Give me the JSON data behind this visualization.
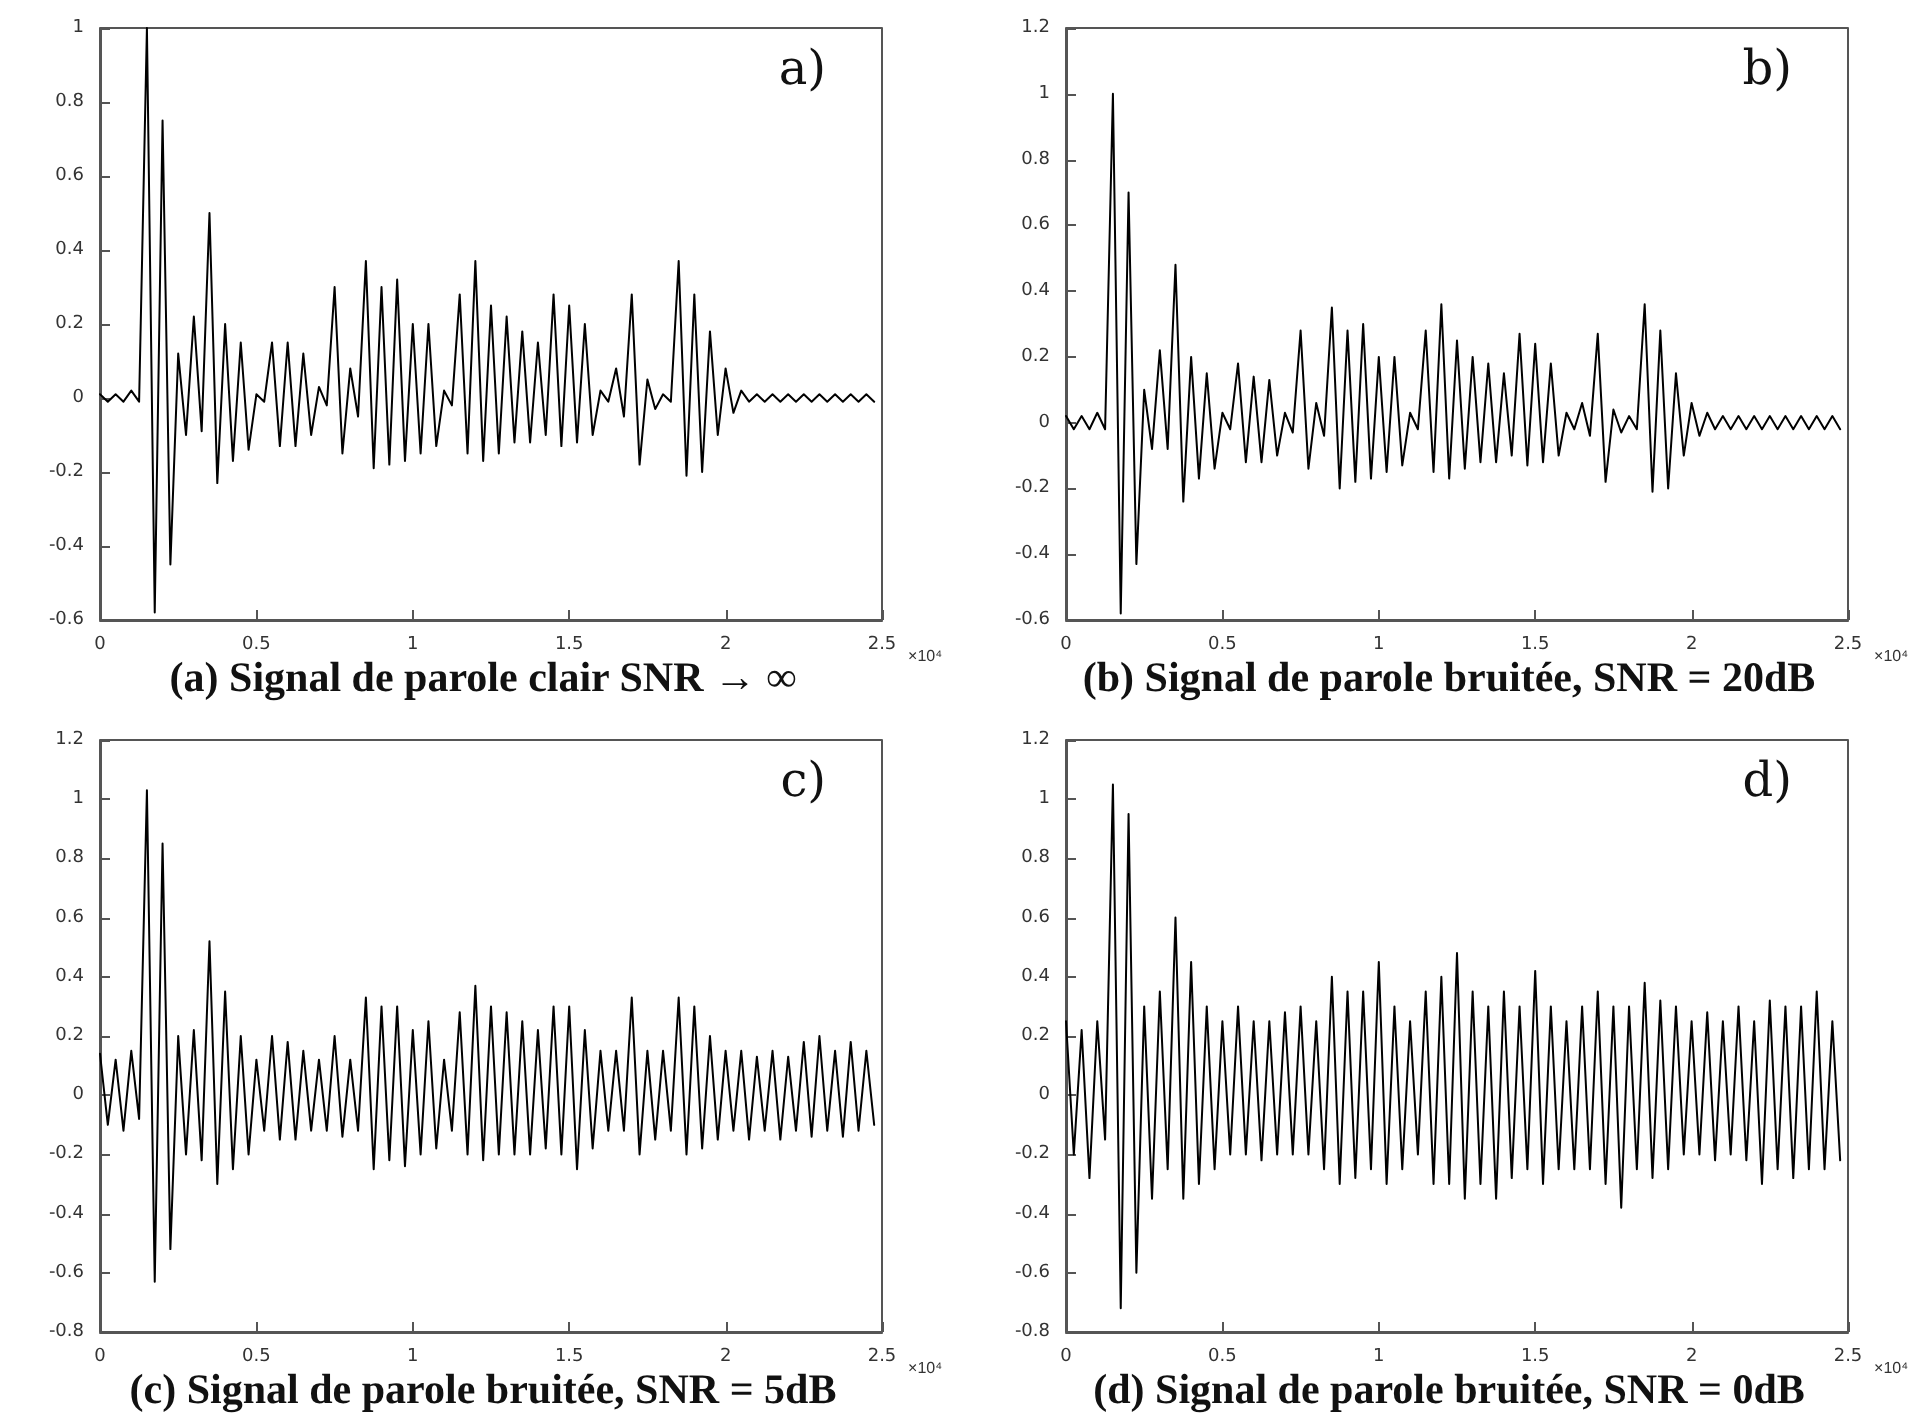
{
  "chart_data": [
    {
      "type": "line",
      "title": "(a) Signal de parole clair SNR → ∞",
      "xlabel": "×10⁴",
      "annotations": [
        "a)"
      ],
      "x": [
        0,
        0.025,
        0.05,
        0.075,
        0.1,
        0.125,
        0.15,
        0.175,
        0.2,
        0.225,
        0.25,
        0.275,
        0.3,
        0.325,
        0.35,
        0.375,
        0.4,
        0.425,
        0.45,
        0.475,
        0.5,
        0.525,
        0.55,
        0.575,
        0.6,
        0.625,
        0.65,
        0.675,
        0.7,
        0.725,
        0.75,
        0.775,
        0.8,
        0.825,
        0.85,
        0.875,
        0.9,
        0.925,
        0.95,
        0.975,
        1,
        1.025,
        1.05,
        1.075,
        1.1,
        1.125,
        1.15,
        1.175,
        1.2,
        1.225,
        1.25,
        1.275,
        1.3,
        1.325,
        1.35,
        1.375,
        1.4,
        1.425,
        1.45,
        1.475,
        1.5,
        1.525,
        1.55,
        1.575,
        1.6,
        1.625,
        1.65,
        1.675,
        1.7,
        1.725,
        1.75,
        1.775,
        1.8,
        1.825,
        1.85,
        1.875,
        1.9,
        1.925,
        1.95,
        1.975,
        2,
        2.025,
        2.05,
        2.075,
        2.1,
        2.125,
        2.15,
        2.175,
        2.2,
        2.225,
        2.25,
        2.275,
        2.3,
        2.325,
        2.35,
        2.375,
        2.4,
        2.425,
        2.45,
        2.475
      ],
      "series": [
        {
          "color": "#000000",
          "values": [
            0.01,
            -0.01,
            0.01,
            -0.01,
            0.02,
            -0.01,
            1,
            -0.58,
            0.75,
            -0.45,
            0.12,
            -0.1,
            0.22,
            -0.09,
            0.5,
            -0.23,
            0.2,
            -0.17,
            0.15,
            -0.14,
            0.01,
            -0.01,
            0.15,
            -0.13,
            0.15,
            -0.13,
            0.12,
            -0.1,
            0.03,
            -0.02,
            0.3,
            -0.15,
            0.08,
            -0.05,
            0.37,
            -0.19,
            0.3,
            -0.18,
            0.32,
            -0.17,
            0.2,
            -0.15,
            0.2,
            -0.13,
            0.02,
            -0.02,
            0.28,
            -0.15,
            0.37,
            -0.17,
            0.25,
            -0.15,
            0.22,
            -0.12,
            0.18,
            -0.12,
            0.15,
            -0.1,
            0.28,
            -0.13,
            0.25,
            -0.12,
            0.2,
            -0.1,
            0.02,
            -0.01,
            0.08,
            -0.05,
            0.28,
            -0.18,
            0.05,
            -0.03,
            0.01,
            -0.01,
            0.37,
            -0.21,
            0.28,
            -0.2,
            0.18,
            -0.1,
            0.08,
            -0.04,
            0.02,
            -0.01,
            0.01,
            -0.01,
            0.01,
            -0.01,
            0.01,
            -0.01,
            0.01,
            -0.01,
            0.01,
            -0.01,
            0.01,
            -0.01,
            0.01,
            -0.01,
            0.01,
            -0.01
          ]
        }
      ],
      "xlim": [
        0,
        2.5
      ],
      "xticks": [
        0,
        0.5,
        1,
        1.5,
        2,
        2.5
      ],
      "ylim": [
        -0.6,
        1
      ],
      "yticks": [
        -0.6,
        -0.4,
        -0.2,
        0,
        0.2,
        0.4,
        0.6,
        0.8,
        1
      ]
    },
    {
      "type": "line",
      "title": "(b) Signal de parole bruitée, SNR = 20dB",
      "xlabel": "×10⁴",
      "annotations": [
        "b)"
      ],
      "x": [
        0,
        0.025,
        0.05,
        0.075,
        0.1,
        0.125,
        0.15,
        0.175,
        0.2,
        0.225,
        0.25,
        0.275,
        0.3,
        0.325,
        0.35,
        0.375,
        0.4,
        0.425,
        0.45,
        0.475,
        0.5,
        0.525,
        0.55,
        0.575,
        0.6,
        0.625,
        0.65,
        0.675,
        0.7,
        0.725,
        0.75,
        0.775,
        0.8,
        0.825,
        0.85,
        0.875,
        0.9,
        0.925,
        0.95,
        0.975,
        1,
        1.025,
        1.05,
        1.075,
        1.1,
        1.125,
        1.15,
        1.175,
        1.2,
        1.225,
        1.25,
        1.275,
        1.3,
        1.325,
        1.35,
        1.375,
        1.4,
        1.425,
        1.45,
        1.475,
        1.5,
        1.525,
        1.55,
        1.575,
        1.6,
        1.625,
        1.65,
        1.675,
        1.7,
        1.725,
        1.75,
        1.775,
        1.8,
        1.825,
        1.85,
        1.875,
        1.9,
        1.925,
        1.95,
        1.975,
        2,
        2.025,
        2.05,
        2.075,
        2.1,
        2.125,
        2.15,
        2.175,
        2.2,
        2.225,
        2.25,
        2.275,
        2.3,
        2.325,
        2.35,
        2.375,
        2.4,
        2.425,
        2.45,
        2.475
      ],
      "series": [
        {
          "color": "#000000",
          "values": [
            0.02,
            -0.02,
            0.02,
            -0.02,
            0.03,
            -0.02,
            1.0,
            -0.58,
            0.7,
            -0.43,
            0.1,
            -0.08,
            0.22,
            -0.08,
            0.48,
            -0.24,
            0.2,
            -0.17,
            0.15,
            -0.14,
            0.03,
            -0.02,
            0.18,
            -0.12,
            0.14,
            -0.12,
            0.13,
            -0.1,
            0.03,
            -0.03,
            0.28,
            -0.14,
            0.06,
            -0.04,
            0.35,
            -0.2,
            0.28,
            -0.18,
            0.3,
            -0.17,
            0.2,
            -0.15,
            0.2,
            -0.13,
            0.03,
            -0.02,
            0.28,
            -0.15,
            0.36,
            -0.17,
            0.25,
            -0.14,
            0.2,
            -0.12,
            0.18,
            -0.12,
            0.15,
            -0.1,
            0.27,
            -0.13,
            0.24,
            -0.12,
            0.18,
            -0.1,
            0.03,
            -0.02,
            0.06,
            -0.04,
            0.27,
            -0.18,
            0.04,
            -0.03,
            0.02,
            -0.02,
            0.36,
            -0.21,
            0.28,
            -0.2,
            0.15,
            -0.1,
            0.06,
            -0.04,
            0.03,
            -0.02,
            0.02,
            -0.02,
            0.02,
            -0.02,
            0.02,
            -0.02,
            0.02,
            -0.02,
            0.02,
            -0.02,
            0.02,
            -0.02,
            0.02,
            -0.02,
            0.02,
            -0.02
          ]
        }
      ],
      "xlim": [
        0,
        2.5
      ],
      "xticks": [
        0,
        0.5,
        1,
        1.5,
        2,
        2.5
      ],
      "ylim": [
        -0.6,
        1.2
      ],
      "yticks": [
        -0.6,
        -0.4,
        -0.2,
        0,
        0.2,
        0.4,
        0.6,
        0.8,
        1,
        1.2
      ]
    },
    {
      "type": "line",
      "title": "(c) Signal de parole bruitée, SNR = 5dB",
      "xlabel": "×10⁴",
      "annotations": [
        "c)"
      ],
      "x": [
        0,
        0.025,
        0.05,
        0.075,
        0.1,
        0.125,
        0.15,
        0.175,
        0.2,
        0.225,
        0.25,
        0.275,
        0.3,
        0.325,
        0.35,
        0.375,
        0.4,
        0.425,
        0.45,
        0.475,
        0.5,
        0.525,
        0.55,
        0.575,
        0.6,
        0.625,
        0.65,
        0.675,
        0.7,
        0.725,
        0.75,
        0.775,
        0.8,
        0.825,
        0.85,
        0.875,
        0.9,
        0.925,
        0.95,
        0.975,
        1,
        1.025,
        1.05,
        1.075,
        1.1,
        1.125,
        1.15,
        1.175,
        1.2,
        1.225,
        1.25,
        1.275,
        1.3,
        1.325,
        1.35,
        1.375,
        1.4,
        1.425,
        1.45,
        1.475,
        1.5,
        1.525,
        1.55,
        1.575,
        1.6,
        1.625,
        1.65,
        1.675,
        1.7,
        1.725,
        1.75,
        1.775,
        1.8,
        1.825,
        1.85,
        1.875,
        1.9,
        1.925,
        1.95,
        1.975,
        2,
        2.025,
        2.05,
        2.075,
        2.1,
        2.125,
        2.15,
        2.175,
        2.2,
        2.225,
        2.25,
        2.275,
        2.3,
        2.325,
        2.35,
        2.375,
        2.4,
        2.425,
        2.45,
        2.475
      ],
      "series": [
        {
          "color": "#000000",
          "values": [
            0.14,
            -0.1,
            0.12,
            -0.12,
            0.15,
            -0.08,
            1.03,
            -0.63,
            0.85,
            -0.52,
            0.2,
            -0.2,
            0.22,
            -0.22,
            0.52,
            -0.3,
            0.35,
            -0.25,
            0.2,
            -0.2,
            0.12,
            -0.12,
            0.2,
            -0.15,
            0.18,
            -0.15,
            0.15,
            -0.12,
            0.12,
            -0.12,
            0.2,
            -0.14,
            0.12,
            -0.12,
            0.33,
            -0.25,
            0.3,
            -0.22,
            0.3,
            -0.24,
            0.22,
            -0.2,
            0.25,
            -0.18,
            0.12,
            -0.12,
            0.28,
            -0.2,
            0.37,
            -0.22,
            0.3,
            -0.2,
            0.28,
            -0.2,
            0.25,
            -0.2,
            0.22,
            -0.18,
            0.3,
            -0.2,
            0.3,
            -0.25,
            0.22,
            -0.18,
            0.15,
            -0.12,
            0.15,
            -0.12,
            0.33,
            -0.2,
            0.15,
            -0.15,
            0.15,
            -0.12,
            0.33,
            -0.2,
            0.3,
            -0.18,
            0.2,
            -0.15,
            0.15,
            -0.12,
            0.15,
            -0.15,
            0.13,
            -0.12,
            0.15,
            -0.15,
            0.13,
            -0.12,
            0.18,
            -0.14,
            0.2,
            -0.12,
            0.15,
            -0.14,
            0.18,
            -0.12,
            0.15,
            -0.1
          ]
        }
      ],
      "xlim": [
        0,
        2.5
      ],
      "xticks": [
        0,
        0.5,
        1,
        1.5,
        2,
        2.5
      ],
      "ylim": [
        -0.8,
        1.2
      ],
      "yticks": [
        -0.8,
        -0.6,
        -0.4,
        -0.2,
        0,
        0.2,
        0.4,
        0.6,
        0.8,
        1,
        1.2
      ]
    },
    {
      "type": "line",
      "title": "(d) Signal de parole bruitée, SNR = 0dB",
      "xlabel": "×10⁴",
      "annotations": [
        "d)"
      ],
      "x": [
        0,
        0.025,
        0.05,
        0.075,
        0.1,
        0.125,
        0.15,
        0.175,
        0.2,
        0.225,
        0.25,
        0.275,
        0.3,
        0.325,
        0.35,
        0.375,
        0.4,
        0.425,
        0.45,
        0.475,
        0.5,
        0.525,
        0.55,
        0.575,
        0.6,
        0.625,
        0.65,
        0.675,
        0.7,
        0.725,
        0.75,
        0.775,
        0.8,
        0.825,
        0.85,
        0.875,
        0.9,
        0.925,
        0.95,
        0.975,
        1,
        1.025,
        1.05,
        1.075,
        1.1,
        1.125,
        1.15,
        1.175,
        1.2,
        1.225,
        1.25,
        1.275,
        1.3,
        1.325,
        1.35,
        1.375,
        1.4,
        1.425,
        1.45,
        1.475,
        1.5,
        1.525,
        1.55,
        1.575,
        1.6,
        1.625,
        1.65,
        1.675,
        1.7,
        1.725,
        1.75,
        1.775,
        1.8,
        1.825,
        1.85,
        1.875,
        1.9,
        1.925,
        1.95,
        1.975,
        2,
        2.025,
        2.05,
        2.075,
        2.1,
        2.125,
        2.15,
        2.175,
        2.2,
        2.225,
        2.25,
        2.275,
        2.3,
        2.325,
        2.35,
        2.375,
        2.4,
        2.425,
        2.45,
        2.475
      ],
      "series": [
        {
          "color": "#000000",
          "values": [
            0.25,
            -0.2,
            0.22,
            -0.28,
            0.25,
            -0.15,
            1.05,
            -0.72,
            0.95,
            -0.6,
            0.3,
            -0.35,
            0.35,
            -0.25,
            0.6,
            -0.35,
            0.45,
            -0.3,
            0.3,
            -0.25,
            0.25,
            -0.2,
            0.3,
            -0.2,
            0.25,
            -0.22,
            0.25,
            -0.2,
            0.28,
            -0.2,
            0.3,
            -0.2,
            0.25,
            -0.25,
            0.4,
            -0.3,
            0.35,
            -0.28,
            0.35,
            -0.25,
            0.45,
            -0.3,
            0.3,
            -0.25,
            0.25,
            -0.2,
            0.35,
            -0.3,
            0.4,
            -0.3,
            0.48,
            -0.35,
            0.35,
            -0.3,
            0.3,
            -0.35,
            0.35,
            -0.28,
            0.3,
            -0.25,
            0.42,
            -0.3,
            0.3,
            -0.25,
            0.25,
            -0.25,
            0.3,
            -0.25,
            0.35,
            -0.3,
            0.3,
            -0.38,
            0.3,
            -0.25,
            0.38,
            -0.28,
            0.32,
            -0.25,
            0.3,
            -0.2,
            0.25,
            -0.2,
            0.28,
            -0.22,
            0.25,
            -0.2,
            0.3,
            -0.22,
            0.25,
            -0.3,
            0.32,
            -0.25,
            0.3,
            -0.28,
            0.3,
            -0.25,
            0.35,
            -0.25,
            0.25,
            -0.22
          ]
        }
      ],
      "xlim": [
        0,
        2.5
      ],
      "xticks": [
        0,
        0.5,
        1,
        1.5,
        2,
        2.5
      ],
      "ylim": [
        -0.8,
        1.2
      ],
      "yticks": [
        -0.8,
        -0.6,
        -0.4,
        -0.2,
        0,
        0.2,
        0.4,
        0.6,
        0.8,
        1,
        1.2
      ]
    }
  ]
}
